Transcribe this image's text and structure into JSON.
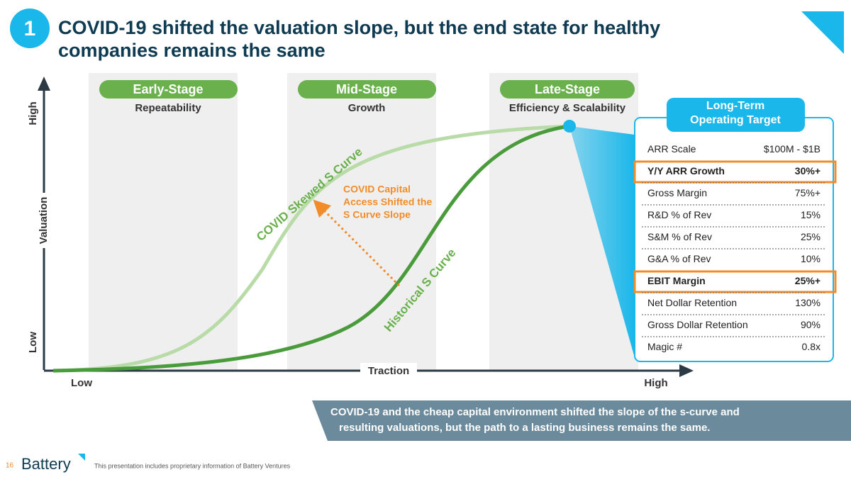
{
  "header": {
    "number": "1",
    "title_lines": [
      "COVID-19 shifted the valuation slope, but the end state for healthy",
      "companies remains the same"
    ]
  },
  "y_axis": {
    "high": "High",
    "label": "Valuation",
    "low": "Low"
  },
  "x_axis": {
    "low": "Low",
    "label": "Traction",
    "high": "High"
  },
  "stages": [
    {
      "name": "Early-Stage",
      "focus": "Repeatability"
    },
    {
      "name": "Mid-Stage",
      "focus": "Growth"
    },
    {
      "name": "Late-Stage",
      "focus": "Efficiency & Scalability"
    }
  ],
  "curves": {
    "covid": "COVID Skewed S Curve",
    "historical": "Historical S Curve"
  },
  "annotation_lines": [
    "COVID Capital",
    "Access Shifted the",
    "S Curve Slope"
  ],
  "target": {
    "header_lines": [
      "Long-Term",
      "Operating Target"
    ],
    "rows": [
      [
        "ARR Scale",
        "$100M - $1B"
      ],
      [
        "Y/Y ARR Growth",
        "30%+"
      ],
      [
        "Gross Margin",
        "75%+"
      ],
      [
        "R&D % of Rev",
        "15%"
      ],
      [
        "S&M % of Rev",
        "25%"
      ],
      [
        "G&A % of Rev",
        "10%"
      ],
      [
        "EBIT Margin",
        "25%+"
      ],
      [
        "Net Dollar Retention",
        "130%"
      ],
      [
        "Gross Dollar Retention",
        "90%"
      ],
      [
        "Magic #",
        "0.8x"
      ]
    ]
  },
  "banner_lines": [
    "COVID-19 and the cheap capital environment shifted the slope of the s-curve and",
    "resulting valuations, but the path to a lasting business remains the same."
  ],
  "footer": {
    "page": "16",
    "logo": "Battery",
    "disclaimer": "This presentation includes proprietary information of Battery Ventures"
  }
}
